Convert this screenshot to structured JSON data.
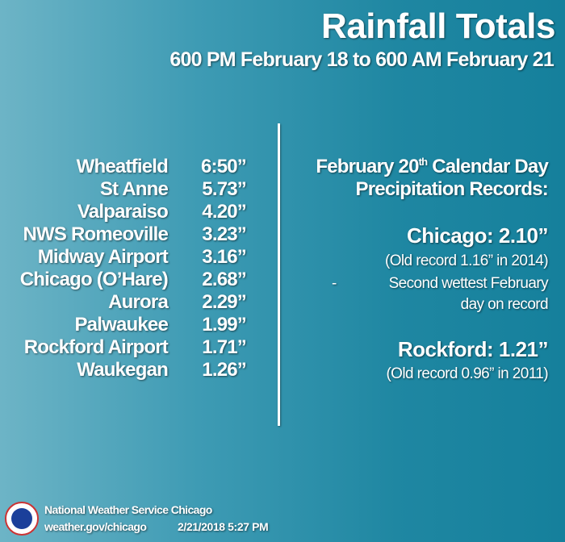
{
  "header": {
    "title": "Rainfall Totals",
    "subtitle": "600 PM February 18 to 600 AM February 21"
  },
  "totals": [
    {
      "location": "Wheatfield",
      "amount": "6:50”"
    },
    {
      "location": "St Anne",
      "amount": "5.73”"
    },
    {
      "location": "Valparaiso",
      "amount": "4.20”"
    },
    {
      "location": "NWS Romeoville",
      "amount": "3.23”"
    },
    {
      "location": "Midway Airport",
      "amount": "3.16”"
    },
    {
      "location": "Chicago (O’Hare)",
      "amount": "2.68”"
    },
    {
      "location": "Aurora",
      "amount": "2.29”"
    },
    {
      "location": "Palwaukee",
      "amount": "1.99”"
    },
    {
      "location": "Rockford Airport",
      "amount": "1.71”"
    },
    {
      "location": "Waukegan",
      "amount": "1.26”"
    }
  ],
  "records": {
    "heading_pre": "February 20",
    "heading_sup": "th",
    "heading_post": " Calendar Day",
    "heading_line2": "Precipitation Records:",
    "chicago": {
      "label": "Chicago: 2.10”",
      "old": "(Old record 1.16” in 2014)",
      "note_bullet": "-",
      "note_line1": "Second wettest February",
      "note_line2": "day on record"
    },
    "rockford": {
      "label": "Rockford:  1.21”",
      "old": "(Old record 0.96” in 2011)"
    }
  },
  "footer": {
    "org": "National Weather Service Chicago",
    "url": "weather.gov/chicago",
    "timestamp": "2/21/2018 5:27 PM",
    "logo_text": "NATIONAL WEATHER SERVICE"
  }
}
